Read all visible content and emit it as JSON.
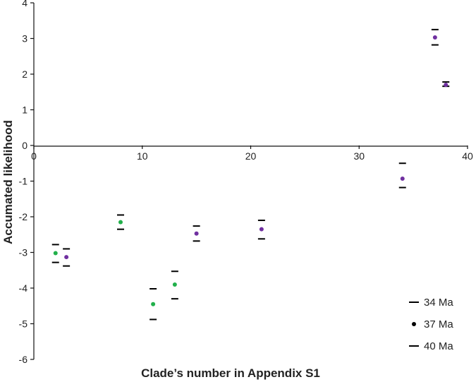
{
  "chart_data": {
    "type": "scatter",
    "xlabel": "Clade’s number in Appendix S1",
    "ylabel": "Accumated likelihood",
    "xlim": [
      0,
      40
    ],
    "ylim": [
      -6,
      4
    ],
    "x_ticks": [
      0,
      10,
      20,
      30,
      40
    ],
    "y_ticks": [
      4,
      3,
      2,
      1,
      0,
      -1,
      -2,
      -3,
      -4,
      -5,
      -6
    ],
    "grid": false,
    "legend_position": "bottom-right",
    "legend": [
      {
        "label": "34 Ma",
        "marker": "dash"
      },
      {
        "label": "37 Ma",
        "marker": "dot"
      },
      {
        "label": "40 Ma",
        "marker": "dash"
      }
    ],
    "colors": {
      "green": "#22b04b",
      "purple": "#7030a0",
      "bounds": "#000000"
    },
    "points": [
      {
        "x": 2,
        "y37": -3.02,
        "upper": -2.78,
        "lower": -3.28,
        "color": "green"
      },
      {
        "x": 3,
        "y37": -3.13,
        "upper": -2.9,
        "lower": -3.38,
        "color": "purple"
      },
      {
        "x": 8,
        "y37": -2.15,
        "upper": -1.95,
        "lower": -2.35,
        "color": "green"
      },
      {
        "x": 11,
        "y37": -4.45,
        "upper": -4.02,
        "lower": -4.88,
        "color": "green"
      },
      {
        "x": 13,
        "y37": -3.9,
        "upper": -3.53,
        "lower": -4.3,
        "color": "green"
      },
      {
        "x": 15,
        "y37": -2.47,
        "upper": -2.26,
        "lower": -2.68,
        "color": "purple"
      },
      {
        "x": 21,
        "y37": -2.35,
        "upper": -2.1,
        "lower": -2.62,
        "color": "purple"
      },
      {
        "x": 34,
        "y37": -0.93,
        "upper": -0.5,
        "lower": -1.18,
        "color": "purple"
      },
      {
        "x": 37,
        "y37": 3.03,
        "upper": 3.25,
        "lower": 2.82,
        "color": "purple"
      },
      {
        "x": 38,
        "y37": 1.7,
        "upper": 1.78,
        "lower": 1.66,
        "color": "purple"
      }
    ]
  }
}
